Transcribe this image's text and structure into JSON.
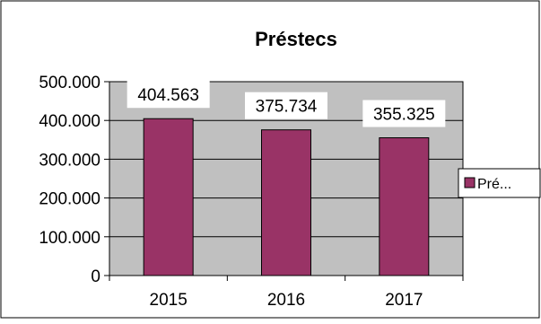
{
  "chart_data": {
    "type": "bar",
    "title": "Préstecs",
    "categories": [
      "2015",
      "2016",
      "2017"
    ],
    "series": [
      {
        "name": "Pré...",
        "values": [
          404563,
          375734,
          355325
        ]
      }
    ],
    "data_labels": [
      "404.563",
      "375.734",
      "355.325"
    ],
    "y_tick_labels": [
      "0",
      "100.000",
      "200.000",
      "300.000",
      "400.000",
      "500.000"
    ],
    "y_ticks": [
      0,
      100000,
      200000,
      300000,
      400000,
      500000
    ],
    "ylim": [
      0,
      500000
    ],
    "xlabel": "",
    "ylabel": "",
    "grid": true,
    "legend_position": "right",
    "colors": {
      "bar": "#993366",
      "plot_area": "#c0c0c0",
      "grid": "#000000",
      "border": "#000000"
    }
  }
}
